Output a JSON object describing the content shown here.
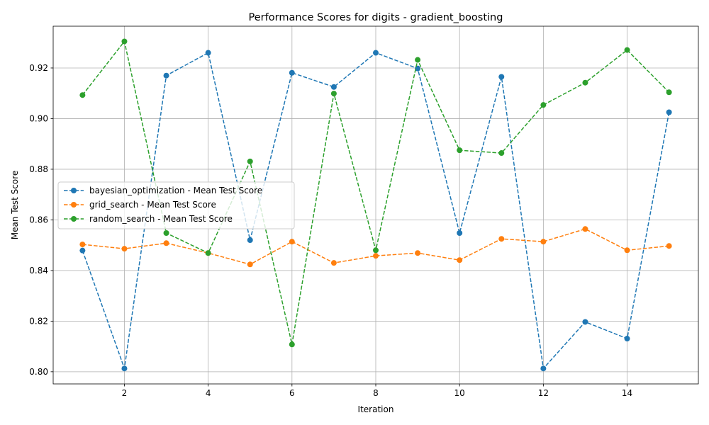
{
  "chart_data": {
    "type": "line",
    "title": "Performance Scores for digits - gradient_boosting",
    "xlabel": "Iteration",
    "ylabel": "Mean Test Score",
    "x": [
      1,
      2,
      3,
      4,
      5,
      6,
      7,
      8,
      9,
      10,
      11,
      12,
      13,
      14,
      15
    ],
    "xlim": [
      0.3,
      15.7
    ],
    "ylim": [
      0.7952,
      0.9365
    ],
    "xticks": [
      2,
      4,
      6,
      8,
      10,
      12,
      14
    ],
    "yticks": [
      0.8,
      0.82,
      0.84,
      0.86,
      0.88,
      0.9,
      0.92
    ],
    "xtick_labels": [
      "2",
      "4",
      "6",
      "8",
      "10",
      "12",
      "14"
    ],
    "ytick_labels": [
      "0.80",
      "0.82",
      "0.84",
      "0.86",
      "0.88",
      "0.90",
      "0.92"
    ],
    "grid": true,
    "legend_position": "center-left",
    "series": [
      {
        "name": "bayesian_optimization - Mean Test Score",
        "color": "#1f77b4",
        "values": [
          0.8479,
          0.8013,
          0.917,
          0.926,
          0.852,
          0.9181,
          0.9125,
          0.926,
          0.9198,
          0.8548,
          0.9165,
          0.8013,
          0.8197,
          0.8131,
          0.9025
        ]
      },
      {
        "name": "grid_search - Mean Test Score",
        "color": "#ff7f0e",
        "values": [
          0.8503,
          0.8486,
          0.8508,
          0.8469,
          0.8424,
          0.8514,
          0.843,
          0.8458,
          0.8469,
          0.8441,
          0.8525,
          0.8514,
          0.8564,
          0.848,
          0.8497
        ]
      },
      {
        "name": "random_search - Mean Test Score",
        "color": "#2ca02c",
        "values": [
          0.9093,
          0.9305,
          0.8548,
          0.8469,
          0.8831,
          0.8108,
          0.9099,
          0.848,
          0.9232,
          0.8875,
          0.8864,
          0.9054,
          0.9142,
          0.9271,
          0.9104
        ]
      }
    ]
  }
}
